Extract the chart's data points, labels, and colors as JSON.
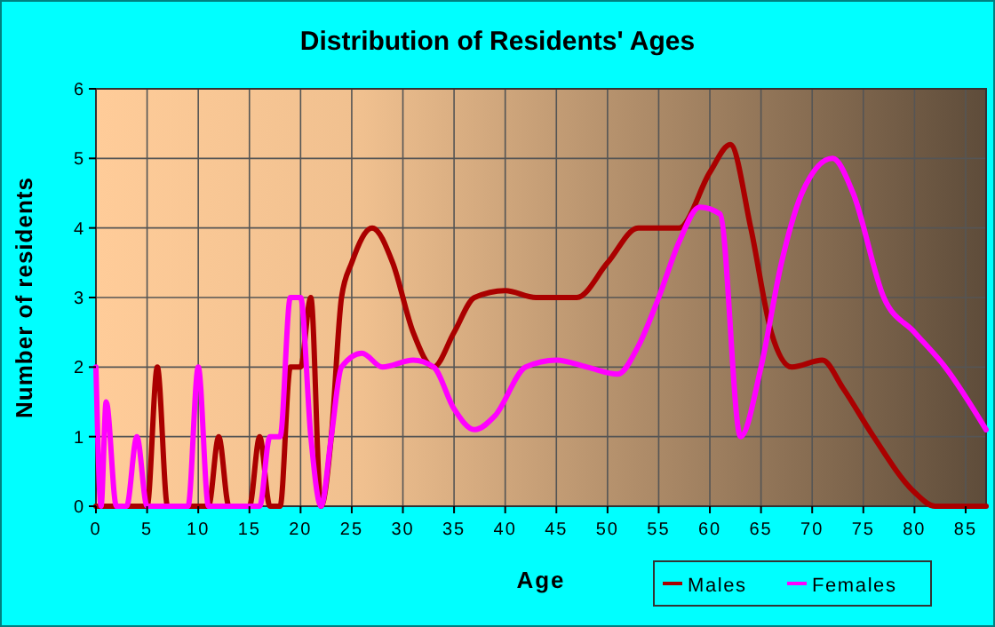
{
  "chart_data": {
    "type": "line",
    "title": "Distribution of Residents' Ages",
    "xlabel": "Age",
    "ylabel": "Number of residents",
    "xlim": [
      0,
      87
    ],
    "ylim": [
      0,
      6
    ],
    "xticks": [
      0,
      5,
      10,
      15,
      20,
      25,
      30,
      35,
      40,
      45,
      50,
      55,
      60,
      65,
      70,
      75,
      80,
      85
    ],
    "yticks": [
      0,
      1,
      2,
      3,
      4,
      5,
      6
    ],
    "grid": true,
    "legend": "bottom right",
    "line_style": "solid",
    "series": [
      {
        "name": "Males",
        "color": "#aa0000",
        "x": [
          0,
          1,
          2,
          3,
          4,
          5,
          6,
          7,
          8,
          9,
          10,
          11,
          12,
          13,
          14,
          15,
          16,
          17,
          18,
          19,
          20,
          21,
          22,
          23,
          24,
          25,
          27,
          29,
          31,
          33,
          35,
          37,
          40,
          43,
          47,
          50,
          53,
          57,
          60,
          62,
          64,
          66,
          68,
          71,
          73,
          76,
          80,
          82,
          87
        ],
        "values": [
          0,
          0,
          0,
          0,
          0,
          0,
          2,
          0,
          0,
          0,
          0,
          0,
          1,
          0,
          0,
          0,
          1,
          0,
          0,
          2,
          2,
          3,
          0,
          1,
          3,
          3.5,
          4,
          3.5,
          2.5,
          2,
          2.5,
          3,
          3.1,
          3,
          3,
          3.5,
          4,
          4,
          4.8,
          5.2,
          4,
          2.5,
          2,
          2.1,
          1.7,
          1,
          0.2,
          0,
          0
        ]
      },
      {
        "name": "Females",
        "color": "#ff00ff",
        "x": [
          0,
          0.5,
          1,
          2,
          3,
          4,
          5,
          6,
          9,
          10,
          11,
          12,
          15,
          16,
          17,
          18,
          19,
          20,
          21,
          22,
          23,
          24,
          26,
          28,
          31,
          33,
          35,
          37,
          39,
          42,
          45,
          48,
          51,
          53,
          55,
          57,
          59,
          61,
          63,
          65,
          67,
          69,
          72,
          74,
          77,
          80,
          83,
          87
        ],
        "values": [
          2,
          0,
          1.5,
          0,
          0,
          1,
          0,
          0,
          0,
          2,
          0,
          0,
          0,
          0,
          1,
          1,
          3,
          3,
          1,
          0,
          1,
          2,
          2.2,
          2,
          2.1,
          2,
          1.4,
          1.1,
          1.3,
          2,
          2.1,
          2,
          1.9,
          2.3,
          3,
          3.8,
          4.3,
          4.2,
          1,
          2,
          3.5,
          4.5,
          5,
          4.5,
          3,
          2.5,
          2,
          1.1
        ]
      }
    ]
  }
}
